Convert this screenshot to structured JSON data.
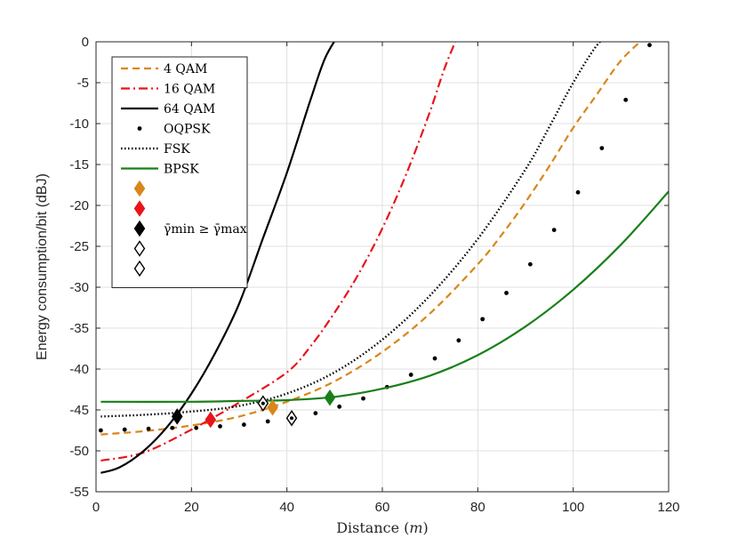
{
  "chart_data": {
    "type": "line",
    "title": "",
    "xlabel": "Distance",
    "xlabel_unit": "m",
    "ylabel": "Energy consumption/bit (dBJ)",
    "xlim": [
      0,
      120
    ],
    "ylim": [
      -55,
      0
    ],
    "grid": true,
    "legend_position": "top-left",
    "x_ticks": [
      0,
      20,
      40,
      60,
      80,
      100,
      120
    ],
    "y_ticks": [
      -55,
      -50,
      -45,
      -40,
      -35,
      -30,
      -25,
      -20,
      -15,
      -10,
      -5,
      0
    ],
    "series": [
      {
        "name": "4 QAM",
        "style": "dashed",
        "color": "#D9861A",
        "x": [
          1,
          10,
          20,
          30,
          40,
          50,
          60,
          70,
          80,
          85,
          90,
          95,
          100,
          105,
          110,
          115
        ],
        "y": [
          -48.0,
          -47.6,
          -46.9,
          -45.8,
          -44.0,
          -41.5,
          -37.9,
          -33.2,
          -27.2,
          -23.6,
          -19.6,
          -15.2,
          -10.5,
          -6.4,
          -2.3,
          0.5
        ]
      },
      {
        "name": "16 QAM",
        "style": "dashdot",
        "color": "#E8141A",
        "x": [
          1,
          10,
          20,
          30,
          40,
          45,
          50,
          55,
          60,
          65,
          70,
          73,
          76
        ],
        "y": [
          -51.2,
          -50.2,
          -47.4,
          -44.1,
          -40.4,
          -37.2,
          -33.1,
          -28.4,
          -22.8,
          -16.2,
          -8.5,
          -3.3,
          1.0
        ]
      },
      {
        "name": "64 QAM",
        "style": "solid",
        "color": "#000000",
        "x": [
          1,
          5,
          10,
          15,
          20,
          25,
          30,
          35,
          40,
          45,
          48,
          51
        ],
        "y": [
          -52.7,
          -52.0,
          -50.0,
          -47.0,
          -43.0,
          -38.0,
          -32.0,
          -24.0,
          -16.0,
          -7.0,
          -2.0,
          1.0
        ]
      },
      {
        "name": "OQPSK",
        "style": "dots",
        "color": "#000000",
        "x": [
          1,
          6,
          11,
          16,
          21,
          26,
          31,
          36,
          41,
          46,
          51,
          56,
          61,
          66,
          71,
          76,
          81,
          86,
          91,
          96,
          101,
          106,
          111,
          116
        ],
        "y": [
          -47.5,
          -47.4,
          -47.3,
          -47.2,
          -47.2,
          -47.0,
          -46.8,
          -46.4,
          -46.0,
          -45.4,
          -44.6,
          -43.6,
          -42.2,
          -40.7,
          -38.7,
          -36.5,
          -33.9,
          -30.7,
          -27.2,
          -23.0,
          -18.4,
          -13.0,
          -7.1,
          -0.4
        ]
      },
      {
        "name": "FSK",
        "style": "dotted",
        "color": "#000000",
        "x": [
          1,
          10,
          20,
          30,
          40,
          50,
          60,
          70,
          80,
          90,
          95,
          100,
          105,
          108
        ],
        "y": [
          -45.8,
          -45.6,
          -45.2,
          -44.5,
          -43.0,
          -40.4,
          -36.4,
          -31.0,
          -24.1,
          -15.6,
          -10.4,
          -5.0,
          -0.4,
          1.0
        ]
      },
      {
        "name": "BPSK",
        "style": "solid",
        "color": "#1A7F1A",
        "x": [
          1,
          20,
          30,
          40,
          50,
          60,
          70,
          80,
          90,
          100,
          110,
          120
        ],
        "y": [
          -44.0,
          -44.0,
          -43.9,
          -43.8,
          -43.4,
          -42.4,
          -40.8,
          -38.3,
          -34.8,
          -30.3,
          -24.8,
          -18.3
        ]
      }
    ],
    "markers": [
      {
        "name": "4 QAM marker",
        "x": 37,
        "y": -44.7,
        "shape": "diamond",
        "filled": true,
        "color": "#D9861A"
      },
      {
        "name": "16 QAM marker",
        "x": 24,
        "y": -46.2,
        "shape": "diamond",
        "filled": true,
        "color": "#E8141A"
      },
      {
        "name": "64 QAM marker",
        "x": 17,
        "y": -45.8,
        "shape": "diamond",
        "filled": true,
        "color": "#000000"
      },
      {
        "name": "BPSK marker",
        "x": 49,
        "y": -43.5,
        "shape": "diamond",
        "filled": true,
        "color": "#1A7F1A"
      },
      {
        "name": "open marker a",
        "x": 35,
        "y": -44.2,
        "shape": "diamond",
        "filled": false,
        "color": "#000000"
      },
      {
        "name": "open marker b",
        "x": 41,
        "y": -46.0,
        "shape": "diamond",
        "filled": false,
        "color": "#000000"
      }
    ],
    "legend": [
      {
        "label": "4 QAM",
        "kind": "line",
        "style": "dashed",
        "color": "#D9861A"
      },
      {
        "label": "16 QAM",
        "kind": "line",
        "style": "dashdot",
        "color": "#E8141A"
      },
      {
        "label": "64 QAM",
        "kind": "line",
        "style": "solid",
        "color": "#000000"
      },
      {
        "label": "OQPSK",
        "kind": "dot",
        "style": "dot",
        "color": "#000000"
      },
      {
        "label": "FSK",
        "kind": "line",
        "style": "dotted",
        "color": "#000000"
      },
      {
        "label": "BPSK",
        "kind": "line",
        "style": "solid",
        "color": "#1A7F1A"
      },
      {
        "label": "",
        "kind": "diamond",
        "filled": true,
        "color": "#D9861A"
      },
      {
        "label": "",
        "kind": "diamond",
        "filled": true,
        "color": "#E8141A"
      },
      {
        "label": "γ̄min ≥ γ̄max",
        "kind": "diamond",
        "filled": true,
        "color": "#000000"
      },
      {
        "label": "",
        "kind": "diamond",
        "filled": false,
        "color": "#000000"
      },
      {
        "label": "",
        "kind": "diamond",
        "filled": false,
        "color": "#000000"
      }
    ]
  }
}
